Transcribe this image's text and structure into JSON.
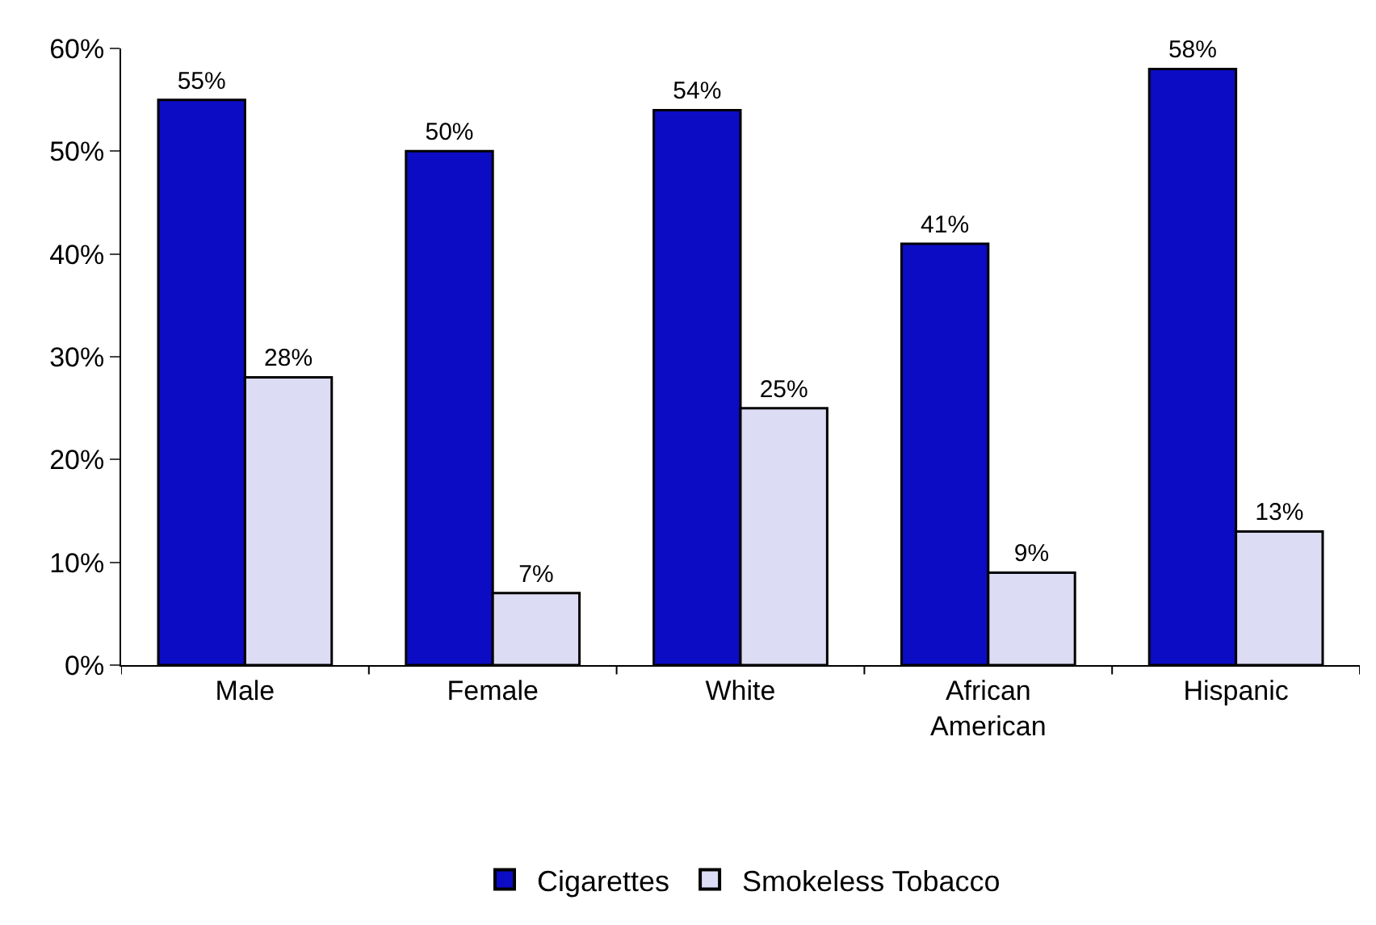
{
  "chart_data": {
    "type": "bar",
    "categories": [
      "Male",
      "Female",
      "White",
      "African American",
      "Hispanic"
    ],
    "series": [
      {
        "name": "Cigarettes",
        "color": "#0c0cc4",
        "values": [
          55,
          50,
          54,
          41,
          58
        ],
        "value_labels": [
          "55%",
          "50%",
          "54%",
          "41%",
          "58%"
        ]
      },
      {
        "name": "Smokeless Tobacco",
        "color": "#dcdcf4",
        "values": [
          28,
          7,
          25,
          9,
          13
        ],
        "value_labels": [
          "28%",
          "7%",
          "25%",
          "9%",
          "13%"
        ]
      }
    ],
    "ylim": [
      0,
      60
    ],
    "yticks": [
      {
        "value": 0,
        "label": "0%"
      },
      {
        "value": 10,
        "label": "10%"
      },
      {
        "value": 20,
        "label": "20%"
      },
      {
        "value": 30,
        "label": "30%"
      },
      {
        "value": 40,
        "label": "40%"
      },
      {
        "value": 50,
        "label": "50%"
      },
      {
        "value": 60,
        "label": "60%"
      }
    ],
    "legend": "bottom"
  }
}
